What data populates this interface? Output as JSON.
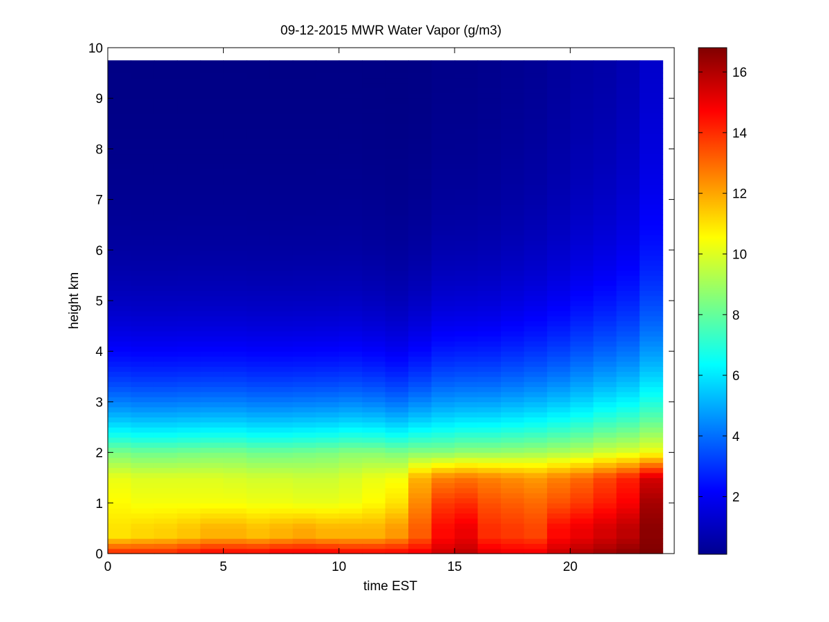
{
  "chart_data": {
    "type": "heatmap",
    "title": "09-12-2015 MWR Water Vapor (g/m3)",
    "xlabel": "time EST",
    "ylabel": "height km",
    "xlim": [
      0,
      24.5
    ],
    "ylim": [
      0,
      10
    ],
    "x_ticks": [
      0,
      5,
      10,
      15,
      20
    ],
    "y_ticks": [
      0,
      1,
      2,
      3,
      4,
      5,
      6,
      7,
      8,
      9,
      10
    ],
    "colorbar": {
      "colormap": "jet",
      "range": [
        0.1,
        16.8
      ],
      "ticks": [
        2,
        4,
        6,
        8,
        10,
        12,
        14,
        16
      ]
    },
    "time_hours": [
      0,
      1,
      2,
      3,
      4,
      5,
      6,
      7,
      8,
      9,
      10,
      11,
      12,
      13,
      14,
      15,
      16,
      17,
      18,
      19,
      20,
      21,
      22,
      23
    ],
    "height_km_top": 9.75,
    "surface_wv": [
      14.2,
      14.2,
      14.2,
      14.5,
      14.8,
      14.8,
      14.8,
      15.0,
      15.0,
      15.0,
      14.8,
      14.8,
      14.8,
      15.0,
      15.5,
      15.8,
      15.2,
      15.0,
      15.0,
      15.6,
      16.0,
      16.3,
      16.6,
      16.8
    ],
    "low_wv_0_5km": [
      11.0,
      11.2,
      11.3,
      11.5,
      11.8,
      11.8,
      11.6,
      11.8,
      12.0,
      11.8,
      11.8,
      11.8,
      12.2,
      13.2,
      14.6,
      15.0,
      14.0,
      13.8,
      13.6,
      14.6,
      15.0,
      15.4,
      15.8,
      16.6
    ],
    "wv_1km": [
      10.6,
      10.4,
      10.4,
      10.4,
      10.4,
      10.4,
      10.3,
      10.3,
      10.2,
      10.2,
      10.3,
      10.6,
      11.0,
      12.5,
      13.8,
      14.0,
      13.4,
      13.2,
      13.0,
      13.4,
      13.8,
      14.3,
      14.8,
      16.2
    ],
    "wv_1_5km": [
      10.2,
      10.0,
      10.0,
      10.0,
      10.0,
      9.9,
      9.8,
      9.8,
      9.7,
      9.7,
      9.9,
      10.2,
      10.4,
      11.8,
      12.6,
      12.8,
      12.6,
      12.4,
      12.2,
      12.6,
      13.0,
      13.6,
      14.2,
      15.4
    ],
    "scale_height_km": [
      1.45,
      1.45,
      1.45,
      1.45,
      1.45,
      1.45,
      1.45,
      1.45,
      1.45,
      1.45,
      1.45,
      1.4,
      1.35,
      1.45,
      1.6,
      1.6,
      1.6,
      1.65,
      1.7,
      1.75,
      1.85,
      1.9,
      1.95,
      2.1
    ],
    "wv_2km": [
      8.4,
      8.2,
      8.2,
      8.3,
      8.4,
      8.4,
      8.2,
      8.2,
      8.3,
      8.4,
      8.6,
      8.6,
      8.4,
      8.6,
      8.6,
      8.8,
      8.8,
      8.9,
      9.0,
      9.2,
      9.4,
      9.8,
      10.0,
      10.4
    ],
    "top_wv": [
      0.15,
      0.15,
      0.15,
      0.15,
      0.15,
      0.15,
      0.15,
      0.15,
      0.15,
      0.15,
      0.15,
      0.15,
      0.15,
      0.15,
      0.2,
      0.2,
      0.25,
      0.3,
      0.35,
      0.45,
      0.55,
      0.6,
      0.75,
      1.1
    ]
  }
}
